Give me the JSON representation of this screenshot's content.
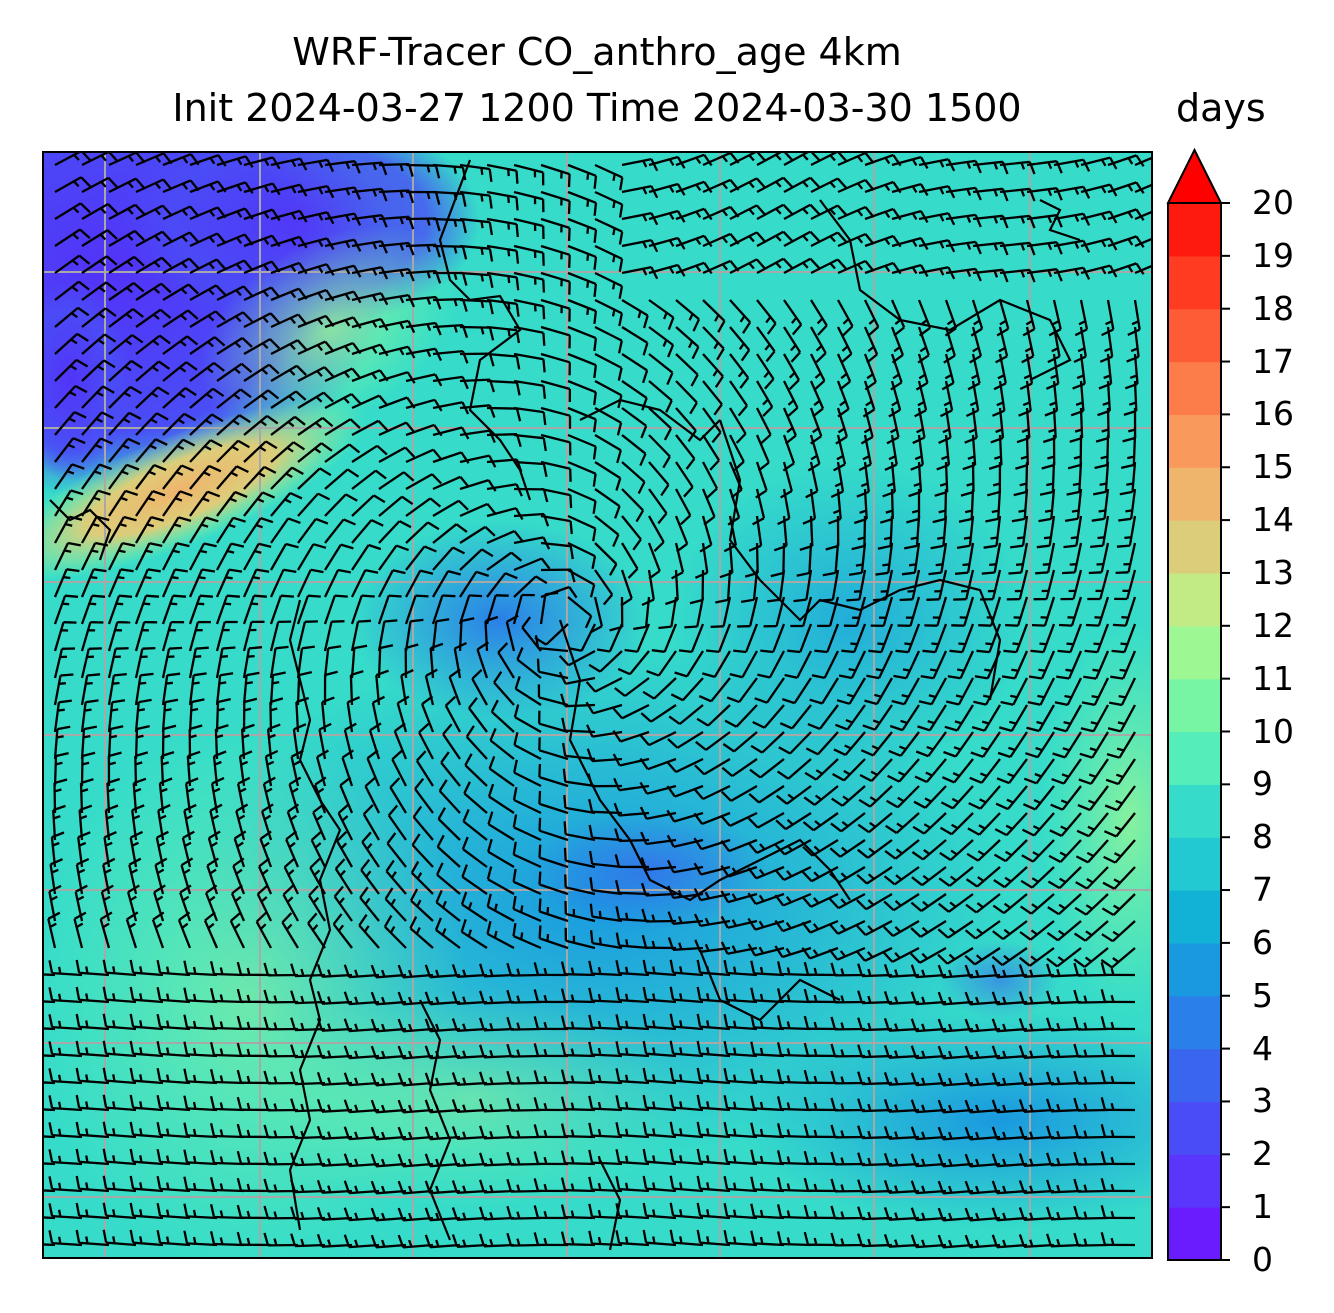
{
  "title_line1": "WRF-Tracer CO_anthro_age 4km",
  "title_line2": "Init 2024-03-27 1200 Time 2024-03-30 1500",
  "units": "days",
  "colorbar": {
    "ticks": [
      "0",
      "1",
      "2",
      "3",
      "4",
      "5",
      "6",
      "7",
      "8",
      "9",
      "10",
      "11",
      "12",
      "13",
      "14",
      "15",
      "16",
      "17",
      "18",
      "19",
      "20"
    ],
    "colors": [
      "#6a1cff",
      "#5a35fb",
      "#4a4df6",
      "#3a66ef",
      "#2a80e8",
      "#1a99e0",
      "#12b2d6",
      "#22c8d2",
      "#36dcc9",
      "#55edb9",
      "#78f5a4",
      "#9df793",
      "#c2ea85",
      "#dccd7a",
      "#efb56c",
      "#f99a5c",
      "#fc7c4a",
      "#fe5c36",
      "#ff3b22",
      "#ff1a10"
    ],
    "over_color": "#ff0000",
    "extend": "max"
  },
  "map": {
    "field": "CO_anthro_age",
    "gridlines": true,
    "overlay": "wind barbs",
    "coastlines": true,
    "features": {
      "low_age_core": "northwest corner (0-2 days)",
      "high_age_band": "west edge, mid-latitude (13-15 days)",
      "cyclonic_circulation": "center of domain"
    }
  }
}
